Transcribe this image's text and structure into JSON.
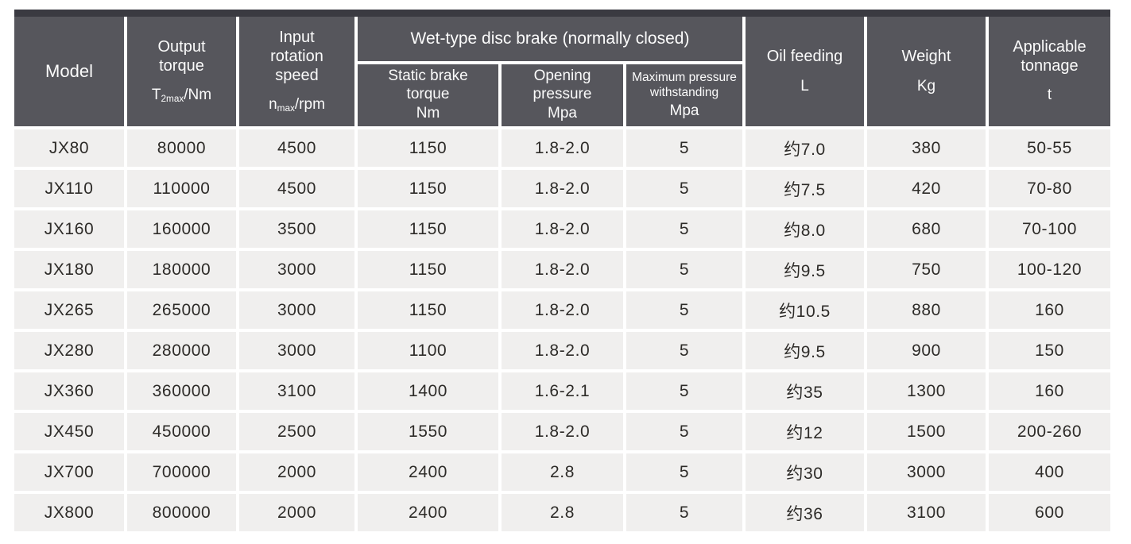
{
  "colors": {
    "header_bg": "#56565c",
    "header_top_bar": "#3a3a41",
    "row_bg": "#f0efee",
    "separator": "#ffffff",
    "header_text": "#fbfbfb",
    "body_text": "#2d2b28"
  },
  "header": {
    "model": "Model",
    "output_torque_label": "Output\ntorque",
    "output_torque_unit_base": "T",
    "output_torque_unit_sub": "2max",
    "output_torque_unit_rest": "/Nm",
    "input_speed_label": "Input\nrotation\nspeed",
    "input_speed_unit_base": "n",
    "input_speed_unit_sub": "max",
    "input_speed_unit_rest": "/rpm",
    "brake_group": "Wet-type disc brake (normally closed)",
    "static_brake_label": "Static brake\ntorque",
    "static_brake_unit": "Nm",
    "opening_pressure_label": "Opening\npressure",
    "opening_pressure_unit": "Mpa",
    "max_pressure_label": "Maximum pressure\nwithstanding",
    "max_pressure_unit": "Mpa",
    "oil_label": "Oil feeding",
    "oil_unit": "L",
    "weight_label": "Weight",
    "weight_unit": "Kg",
    "tonnage_label": "Applicable\ntonnage",
    "tonnage_unit": "t"
  },
  "rows": [
    [
      "JX80",
      "80000",
      "4500",
      "1150",
      "1.8-2.0",
      "5",
      "约7.0",
      "380",
      "50-55"
    ],
    [
      "JX110",
      "110000",
      "4500",
      "1150",
      "1.8-2.0",
      "5",
      "约7.5",
      "420",
      "70-80"
    ],
    [
      "JX160",
      "160000",
      "3500",
      "1150",
      "1.8-2.0",
      "5",
      "约8.0",
      "680",
      "70-100"
    ],
    [
      "JX180",
      "180000",
      "3000",
      "1150",
      "1.8-2.0",
      "5",
      "约9.5",
      "750",
      "100-120"
    ],
    [
      "JX265",
      "265000",
      "3000",
      "1150",
      "1.8-2.0",
      "5",
      "约10.5",
      "880",
      "160"
    ],
    [
      "JX280",
      "280000",
      "3000",
      "1100",
      "1.8-2.0",
      "5",
      "约9.5",
      "900",
      "150"
    ],
    [
      "JX360",
      "360000",
      "3100",
      "1400",
      "1.6-2.1",
      "5",
      "约35",
      "1300",
      "160"
    ],
    [
      "JX450",
      "450000",
      "2500",
      "1550",
      "1.8-2.0",
      "5",
      "约12",
      "1500",
      "200-260"
    ],
    [
      "JX700",
      "700000",
      "2000",
      "2400",
      "2.8",
      "5",
      "约30",
      "3000",
      "400"
    ],
    [
      "JX800",
      "800000",
      "2000",
      "2400",
      "2.8",
      "5",
      "约36",
      "3100",
      "600"
    ]
  ]
}
